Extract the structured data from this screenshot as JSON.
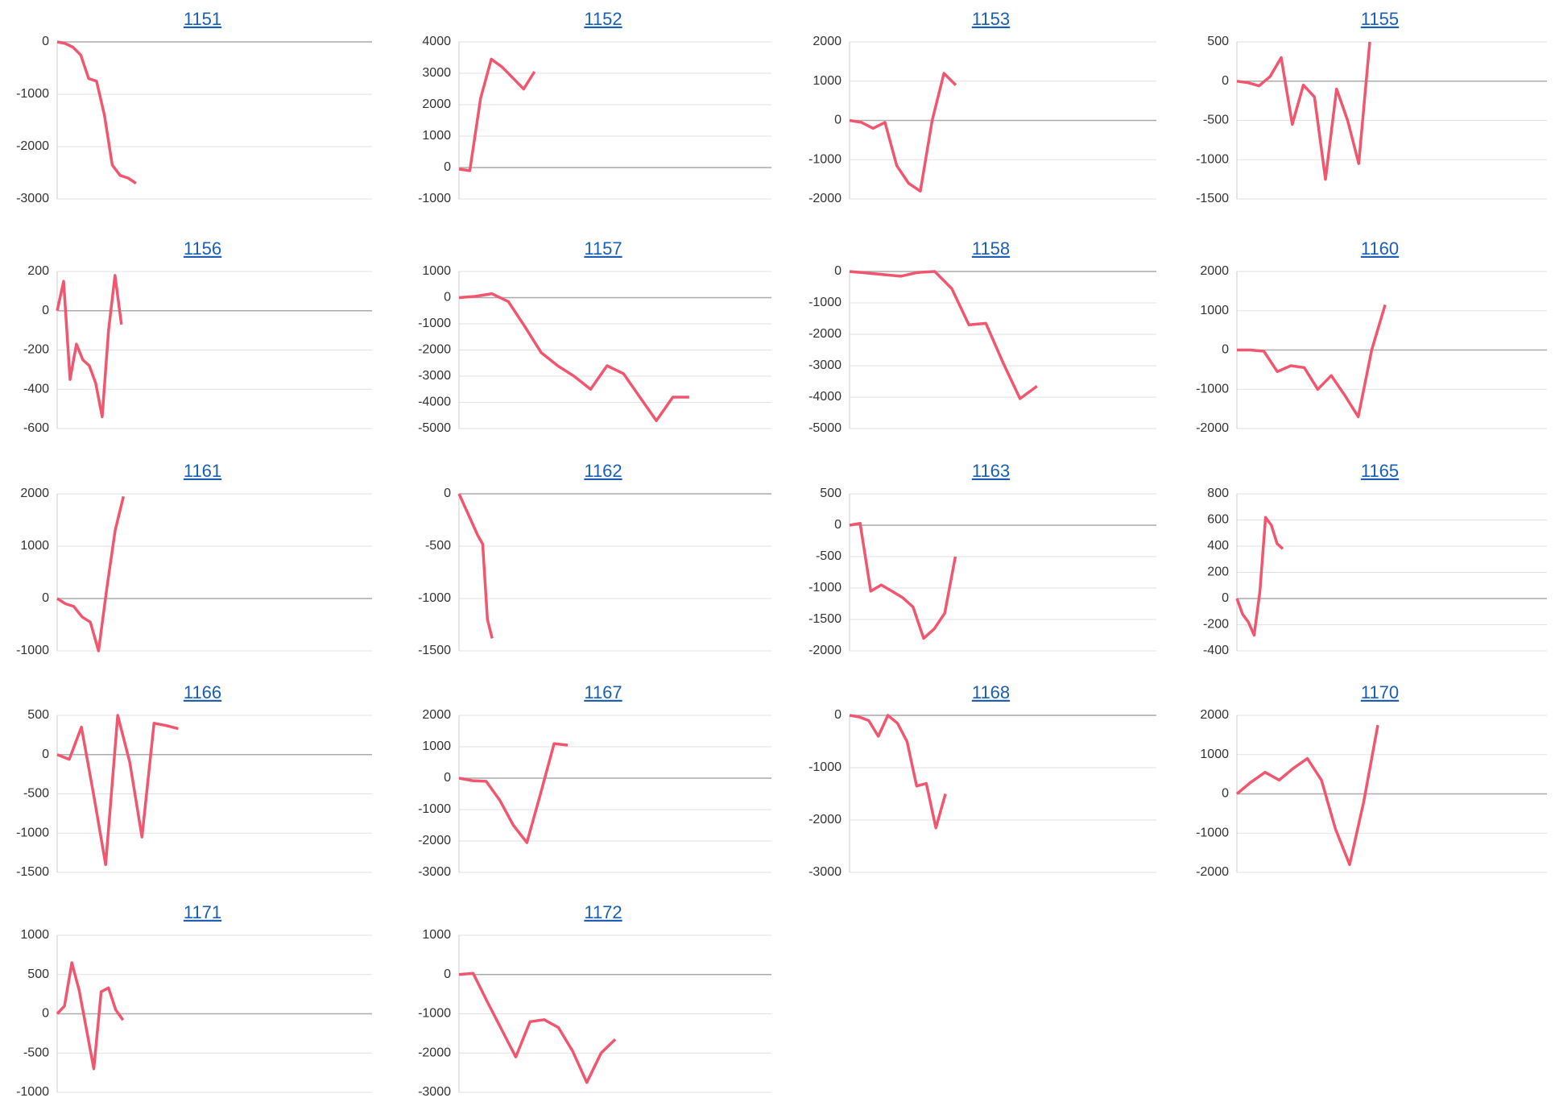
{
  "chart_data": [
    {
      "type": "line",
      "title": "1151",
      "color": "#f2566f",
      "ylim": [
        -3000,
        0
      ],
      "yticks": [
        -3000,
        -2000,
        -1000,
        0
      ],
      "grid": true,
      "values": [
        0,
        -30,
        -100,
        -250,
        -700,
        -750,
        -1400,
        -2350,
        -2550,
        -2600,
        -2700
      ]
    },
    {
      "type": "line",
      "title": "1152",
      "color": "#f2566f",
      "ylim": [
        -1000,
        4000
      ],
      "yticks": [
        -1000,
        0,
        1000,
        2000,
        3000,
        4000
      ],
      "grid": true,
      "values": [
        -50,
        -100,
        2200,
        3450,
        3200,
        2850,
        2500,
        3050
      ]
    },
    {
      "type": "line",
      "title": "1153",
      "color": "#f2566f",
      "ylim": [
        -2000,
        2000
      ],
      "yticks": [
        -2000,
        -1000,
        0,
        1000,
        2000
      ],
      "grid": true,
      "values": [
        0,
        -50,
        -200,
        -50,
        -1150,
        -1600,
        -1800,
        0,
        1200,
        900
      ]
    },
    {
      "type": "line",
      "title": "1155",
      "color": "#f2566f",
      "ylim": [
        -1500,
        500
      ],
      "yticks": [
        -1500,
        -1000,
        -500,
        0,
        500
      ],
      "grid": true,
      "values": [
        0,
        -20,
        -60,
        60,
        300,
        -550,
        -50,
        -200,
        -1250,
        -100,
        -500,
        -1050,
        500
      ]
    },
    {
      "type": "line",
      "title": "1156",
      "color": "#f2566f",
      "ylim": [
        -600,
        200
      ],
      "yticks": [
        -600,
        -400,
        -200,
        0,
        200
      ],
      "grid": true,
      "values": [
        0,
        150,
        -350,
        -170,
        -250,
        -280,
        -370,
        -540,
        -100,
        180,
        -70
      ]
    },
    {
      "type": "line",
      "title": "1157",
      "color": "#f2566f",
      "ylim": [
        -5000,
        1000
      ],
      "yticks": [
        -5000,
        -4000,
        -3000,
        -2000,
        -1000,
        0,
        1000
      ],
      "grid": true,
      "values": [
        0,
        50,
        150,
        -150,
        -1100,
        -2100,
        -2600,
        -3000,
        -3500,
        -2600,
        -2900,
        -3800,
        -4700,
        -3800,
        -3800
      ]
    },
    {
      "type": "line",
      "title": "1158",
      "color": "#f2566f",
      "ylim": [
        -5000,
        0
      ],
      "yticks": [
        -5000,
        -4000,
        -3000,
        -2000,
        -1000,
        0
      ],
      "grid": true,
      "values": [
        0,
        -50,
        -100,
        -150,
        -30,
        0,
        -550,
        -1700,
        -1650,
        -2900,
        -4050,
        -3650
      ]
    },
    {
      "type": "line",
      "title": "1160",
      "color": "#f2566f",
      "ylim": [
        -2000,
        2000
      ],
      "yticks": [
        -2000,
        -1000,
        0,
        1000,
        2000
      ],
      "grid": true,
      "values": [
        0,
        0,
        -30,
        -550,
        -400,
        -450,
        -1000,
        -650,
        -1150,
        -1700,
        0,
        1150
      ]
    },
    {
      "type": "line",
      "title": "1161",
      "color": "#f2566f",
      "ylim": [
        -1000,
        2000
      ],
      "yticks": [
        -1000,
        0,
        1000,
        2000
      ],
      "grid": true,
      "values": [
        0,
        -100,
        -150,
        -350,
        -450,
        -1000,
        200,
        1300,
        1950
      ]
    },
    {
      "type": "line",
      "title": "1162",
      "color": "#f2566f",
      "ylim": [
        -1500,
        0
      ],
      "yticks": [
        -1500,
        -1000,
        -500,
        0
      ],
      "grid": true,
      "values": [
        0,
        -100,
        -200,
        -300,
        -400,
        -480,
        -1200,
        -1380
      ]
    },
    {
      "type": "line",
      "title": "1163",
      "color": "#f2566f",
      "ylim": [
        -2000,
        500
      ],
      "yticks": [
        -2000,
        -1500,
        -1000,
        -500,
        0,
        500
      ],
      "grid": true,
      "values": [
        0,
        30,
        -1050,
        -950,
        -1050,
        -1150,
        -1300,
        -1800,
        -1650,
        -1400,
        -500
      ]
    },
    {
      "type": "line",
      "title": "1165",
      "color": "#f2566f",
      "ylim": [
        -400,
        800
      ],
      "yticks": [
        -400,
        -200,
        0,
        200,
        400,
        600,
        800
      ],
      "grid": true,
      "values": [
        0,
        -120,
        -180,
        -280,
        50,
        620,
        560,
        420,
        380
      ]
    },
    {
      "type": "line",
      "title": "1166",
      "color": "#f2566f",
      "ylim": [
        -1500,
        500
      ],
      "yticks": [
        -1500,
        -1000,
        -500,
        0,
        500
      ],
      "grid": true,
      "values": [
        0,
        -60,
        350,
        -500,
        -1400,
        500,
        -100,
        -1050,
        400,
        370,
        330
      ]
    },
    {
      "type": "line",
      "title": "1167",
      "color": "#f2566f",
      "ylim": [
        -3000,
        2000
      ],
      "yticks": [
        -3000,
        -2000,
        -1000,
        0,
        1000,
        2000
      ],
      "grid": true,
      "values": [
        0,
        -80,
        -100,
        -700,
        -1500,
        -2050,
        -500,
        1100,
        1050
      ]
    },
    {
      "type": "line",
      "title": "1168",
      "color": "#f2566f",
      "ylim": [
        -3000,
        0
      ],
      "yticks": [
        -3000,
        -2000,
        -1000,
        0
      ],
      "grid": true,
      "values": [
        0,
        -30,
        -100,
        -400,
        0,
        -150,
        -500,
        -1350,
        -1300,
        -2150,
        -1500
      ]
    },
    {
      "type": "line",
      "title": "1170",
      "color": "#f2566f",
      "ylim": [
        -2000,
        2000
      ],
      "yticks": [
        -2000,
        -1000,
        0,
        1000,
        2000
      ],
      "grid": true,
      "values": [
        0,
        300,
        550,
        350,
        650,
        900,
        350,
        -900,
        -1800,
        -200,
        1750
      ]
    },
    {
      "type": "line",
      "title": "1171",
      "color": "#f2566f",
      "ylim": [
        -1000,
        1000
      ],
      "yticks": [
        -1000,
        -500,
        0,
        500,
        1000
      ],
      "grid": true,
      "values": [
        0,
        100,
        650,
        300,
        -200,
        -700,
        280,
        330,
        50,
        -80
      ]
    },
    {
      "type": "line",
      "title": "1172",
      "color": "#f2566f",
      "ylim": [
        -3000,
        1000
      ],
      "yticks": [
        -3000,
        -2000,
        -1000,
        0,
        1000
      ],
      "grid": true,
      "values": [
        0,
        30,
        -700,
        -1400,
        -2100,
        -1200,
        -1150,
        -1350,
        -1950,
        -2750,
        -2000,
        -1650
      ]
    }
  ]
}
